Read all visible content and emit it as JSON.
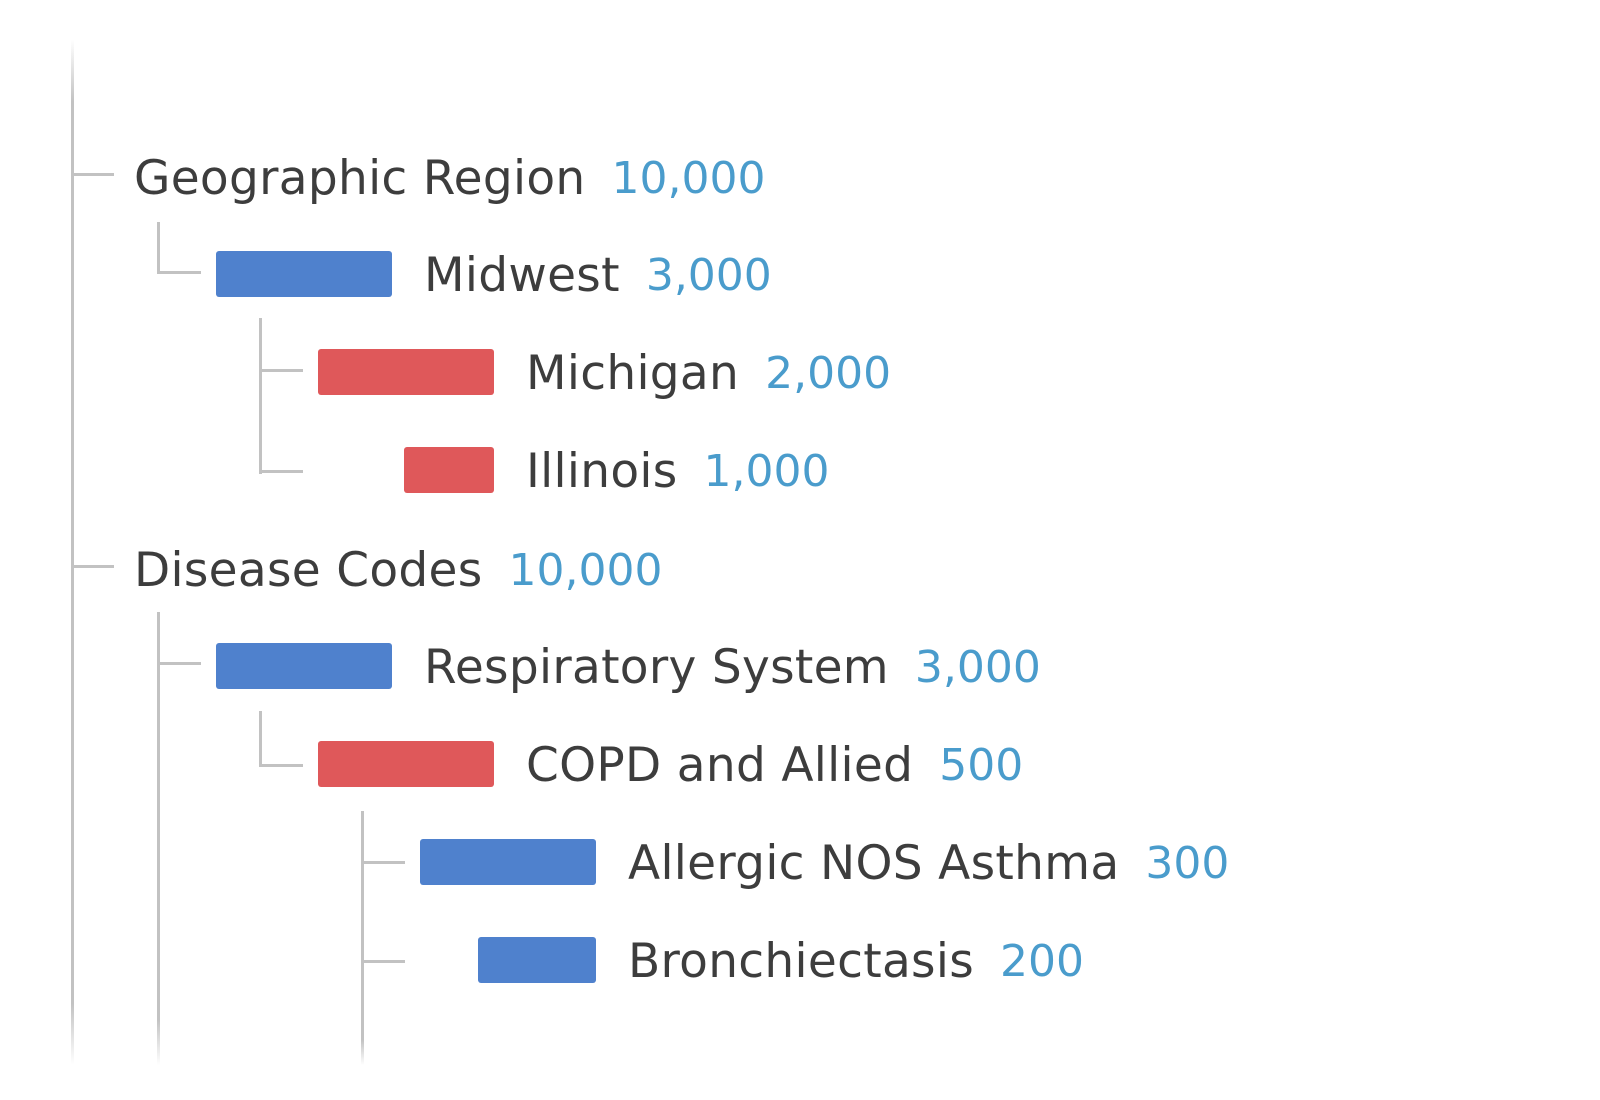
{
  "colors": {
    "blue": "#4f81cd",
    "red": "#df585a",
    "label": "#3d3d3d",
    "count": "#4a9ccc",
    "line": "#c2c2c2"
  },
  "tree": [
    {
      "label": "Geographic Region",
      "count": "10,000",
      "children": [
        {
          "label": "Midwest",
          "count": "3,000",
          "bar": "blue",
          "children": [
            {
              "label": "Michigan",
              "count": "2,000",
              "bar": "red"
            },
            {
              "label": "Illinois",
              "count": "1,000",
              "bar": "red"
            }
          ]
        }
      ]
    },
    {
      "label": "Disease Codes",
      "count": "10,000",
      "children": [
        {
          "label": "Respiratory System",
          "count": "3,000",
          "bar": "blue",
          "children": [
            {
              "label": "COPD and Allied",
              "count": "500",
              "bar": "red",
              "children": [
                {
                  "label": "Allergic NOS Asthma",
                  "count": "300",
                  "bar": "blue"
                },
                {
                  "label": "Bronchiectasis",
                  "count": "200",
                  "bar": "blue"
                }
              ]
            }
          ]
        }
      ]
    }
  ]
}
